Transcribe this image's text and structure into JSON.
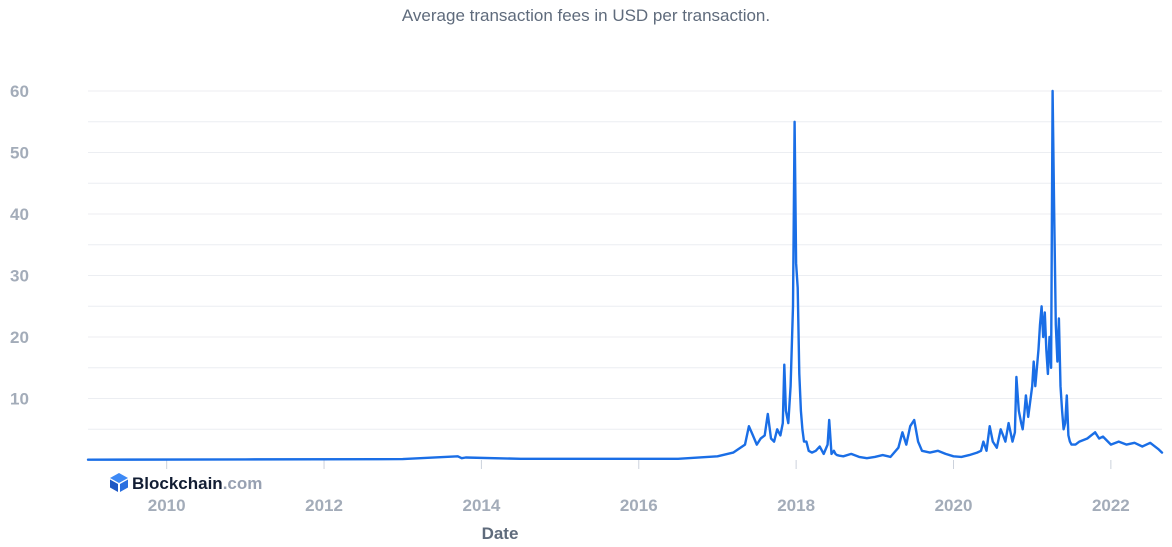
{
  "chart_data": {
    "type": "line",
    "title": "Average transaction fees in USD per transaction.",
    "xlabel": "Date",
    "ylabel": "",
    "xlim": [
      2009.0,
      2022.65
    ],
    "ylim": [
      0,
      60
    ],
    "y_ticks": [
      "10",
      "20",
      "30",
      "40",
      "50",
      "60"
    ],
    "x_ticks": [
      "2010",
      "2012",
      "2014",
      "2016",
      "2018",
      "2020",
      "2022"
    ],
    "grid": true,
    "legend": "none",
    "line_color": "#1a6ee6",
    "series": [
      {
        "x": [
          2009.0,
          2011.0,
          2013.0,
          2013.7,
          2013.75,
          2013.8,
          2014.5,
          2016.5,
          2017.0,
          2017.2,
          2017.35,
          2017.4,
          2017.45,
          2017.5,
          2017.55,
          2017.6,
          2017.64,
          2017.68,
          2017.72,
          2017.76,
          2017.8,
          2017.83,
          2017.85,
          2017.87,
          2017.9,
          2017.93,
          2017.96,
          2017.98,
          2018.0,
          2018.02,
          2018.04,
          2018.06,
          2018.08,
          2018.1,
          2018.13,
          2018.16,
          2018.2,
          2018.25,
          2018.3,
          2018.35,
          2018.4,
          2018.42,
          2018.45,
          2018.48,
          2018.5,
          2018.52,
          2018.55,
          2018.6,
          2018.7,
          2018.8,
          2018.9,
          2019.0,
          2019.1,
          2019.2,
          2019.3,
          2019.35,
          2019.4,
          2019.45,
          2019.5,
          2019.55,
          2019.6,
          2019.7,
          2019.8,
          2019.9,
          2020.0,
          2020.1,
          2020.2,
          2020.3,
          2020.35,
          2020.38,
          2020.42,
          2020.46,
          2020.5,
          2020.55,
          2020.6,
          2020.63,
          2020.66,
          2020.7,
          2020.75,
          2020.78,
          2020.8,
          2020.83,
          2020.86,
          2020.88,
          2020.9,
          2020.92,
          2020.95,
          2020.97,
          2021.0,
          2021.02,
          2021.04,
          2021.06,
          2021.08,
          2021.1,
          2021.12,
          2021.14,
          2021.16,
          2021.18,
          2021.2,
          2021.22,
          2021.24,
          2021.26,
          2021.28,
          2021.3,
          2021.32,
          2021.34,
          2021.36,
          2021.38,
          2021.4,
          2021.42,
          2021.44,
          2021.46,
          2021.48,
          2021.5,
          2021.55,
          2021.6,
          2021.7,
          2021.8,
          2021.85,
          2021.9,
          2022.0,
          2022.1,
          2022.2,
          2022.3,
          2022.4,
          2022.5,
          2022.6,
          2022.65
        ],
        "y": [
          0.05,
          0.1,
          0.15,
          0.6,
          0.3,
          0.4,
          0.2,
          0.2,
          0.6,
          1.2,
          2.5,
          5.5,
          4.0,
          2.5,
          3.5,
          4.0,
          7.5,
          3.5,
          3.0,
          5.0,
          4.0,
          6.0,
          15.5,
          8.0,
          6.0,
          12.0,
          25.0,
          55.0,
          32.0,
          28.0,
          14.0,
          8.0,
          5.0,
          3.0,
          3.0,
          1.5,
          1.2,
          1.5,
          2.2,
          1.0,
          2.5,
          6.5,
          1.0,
          1.5,
          1.0,
          0.8,
          0.7,
          0.6,
          1.0,
          0.5,
          0.3,
          0.5,
          0.8,
          0.5,
          2.0,
          4.5,
          2.5,
          5.5,
          6.5,
          3.0,
          1.5,
          1.2,
          1.5,
          1.0,
          0.6,
          0.5,
          0.8,
          1.2,
          1.5,
          3.0,
          1.5,
          5.5,
          3.0,
          2.0,
          5.0,
          4.0,
          3.0,
          6.0,
          3.0,
          4.5,
          13.5,
          8.0,
          6.0,
          5.0,
          7.5,
          10.5,
          7.0,
          9.0,
          12.0,
          16.0,
          12.0,
          15.0,
          18.0,
          22.0,
          25.0,
          20.0,
          24.0,
          18.0,
          14.0,
          20.0,
          15.0,
          60.0,
          40.0,
          22.0,
          16.0,
          23.0,
          12.0,
          8.0,
          5.0,
          6.0,
          10.5,
          4.0,
          3.0,
          2.5,
          2.5,
          3.0,
          3.5,
          4.5,
          3.5,
          3.8,
          2.5,
          3.0,
          2.5,
          2.8,
          2.2,
          2.8,
          1.8,
          1.2
        ]
      }
    ]
  },
  "brand": {
    "name": "Blockchain",
    "suffix": ".com"
  }
}
